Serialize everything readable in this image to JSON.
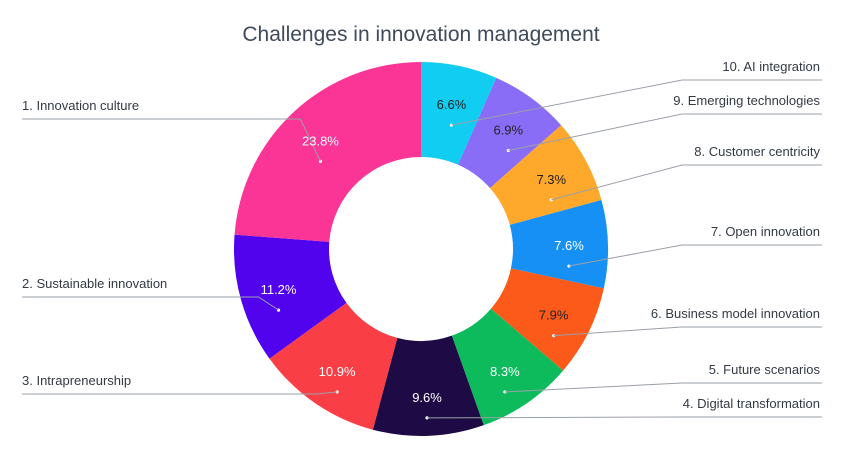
{
  "chart_data": {
    "type": "pie",
    "variant": "donut",
    "title": "Challenges in innovation management",
    "slices": [
      {
        "label": "10. AI integration",
        "value": 6.6,
        "display": "6.6%",
        "color": "#11cdf2",
        "text_color": "#222222"
      },
      {
        "label": "9. Emerging technologies",
        "value": 6.9,
        "display": "6.9%",
        "color": "#8a6df6",
        "text_color": "#222222"
      },
      {
        "label": "8. Customer centricity",
        "value": 7.3,
        "display": "7.3%",
        "color": "#fea82c",
        "text_color": "#222222"
      },
      {
        "label": "7. Open innovation",
        "value": 7.6,
        "display": "7.6%",
        "color": "#1690f4",
        "text_color": "#ffffff"
      },
      {
        "label": "6. Business model innovation",
        "value": 7.9,
        "display": "7.9%",
        "color": "#fc5a1a",
        "text_color": "#222222"
      },
      {
        "label": "5. Future scenarios",
        "value": 8.3,
        "display": "8.3%",
        "color": "#0ebb5c",
        "text_color": "#ffffff"
      },
      {
        "label": "4. Digital transformation",
        "value": 9.6,
        "display": "9.6%",
        "color": "#1e0b45",
        "text_color": "#ffffff"
      },
      {
        "label": "3. Intrapreneurship",
        "value": 10.9,
        "display": "10.9%",
        "color": "#f93e46",
        "text_color": "#ffffff"
      },
      {
        "label": "2. Sustainable innovation",
        "value": 11.2,
        "display": "11.2%",
        "color": "#5103ee",
        "text_color": "#ffffff"
      },
      {
        "label": "1. Innovation culture",
        "value": 23.8,
        "display": "23.8%",
        "color": "#fb3595",
        "text_color": "#ffffff"
      }
    ]
  }
}
